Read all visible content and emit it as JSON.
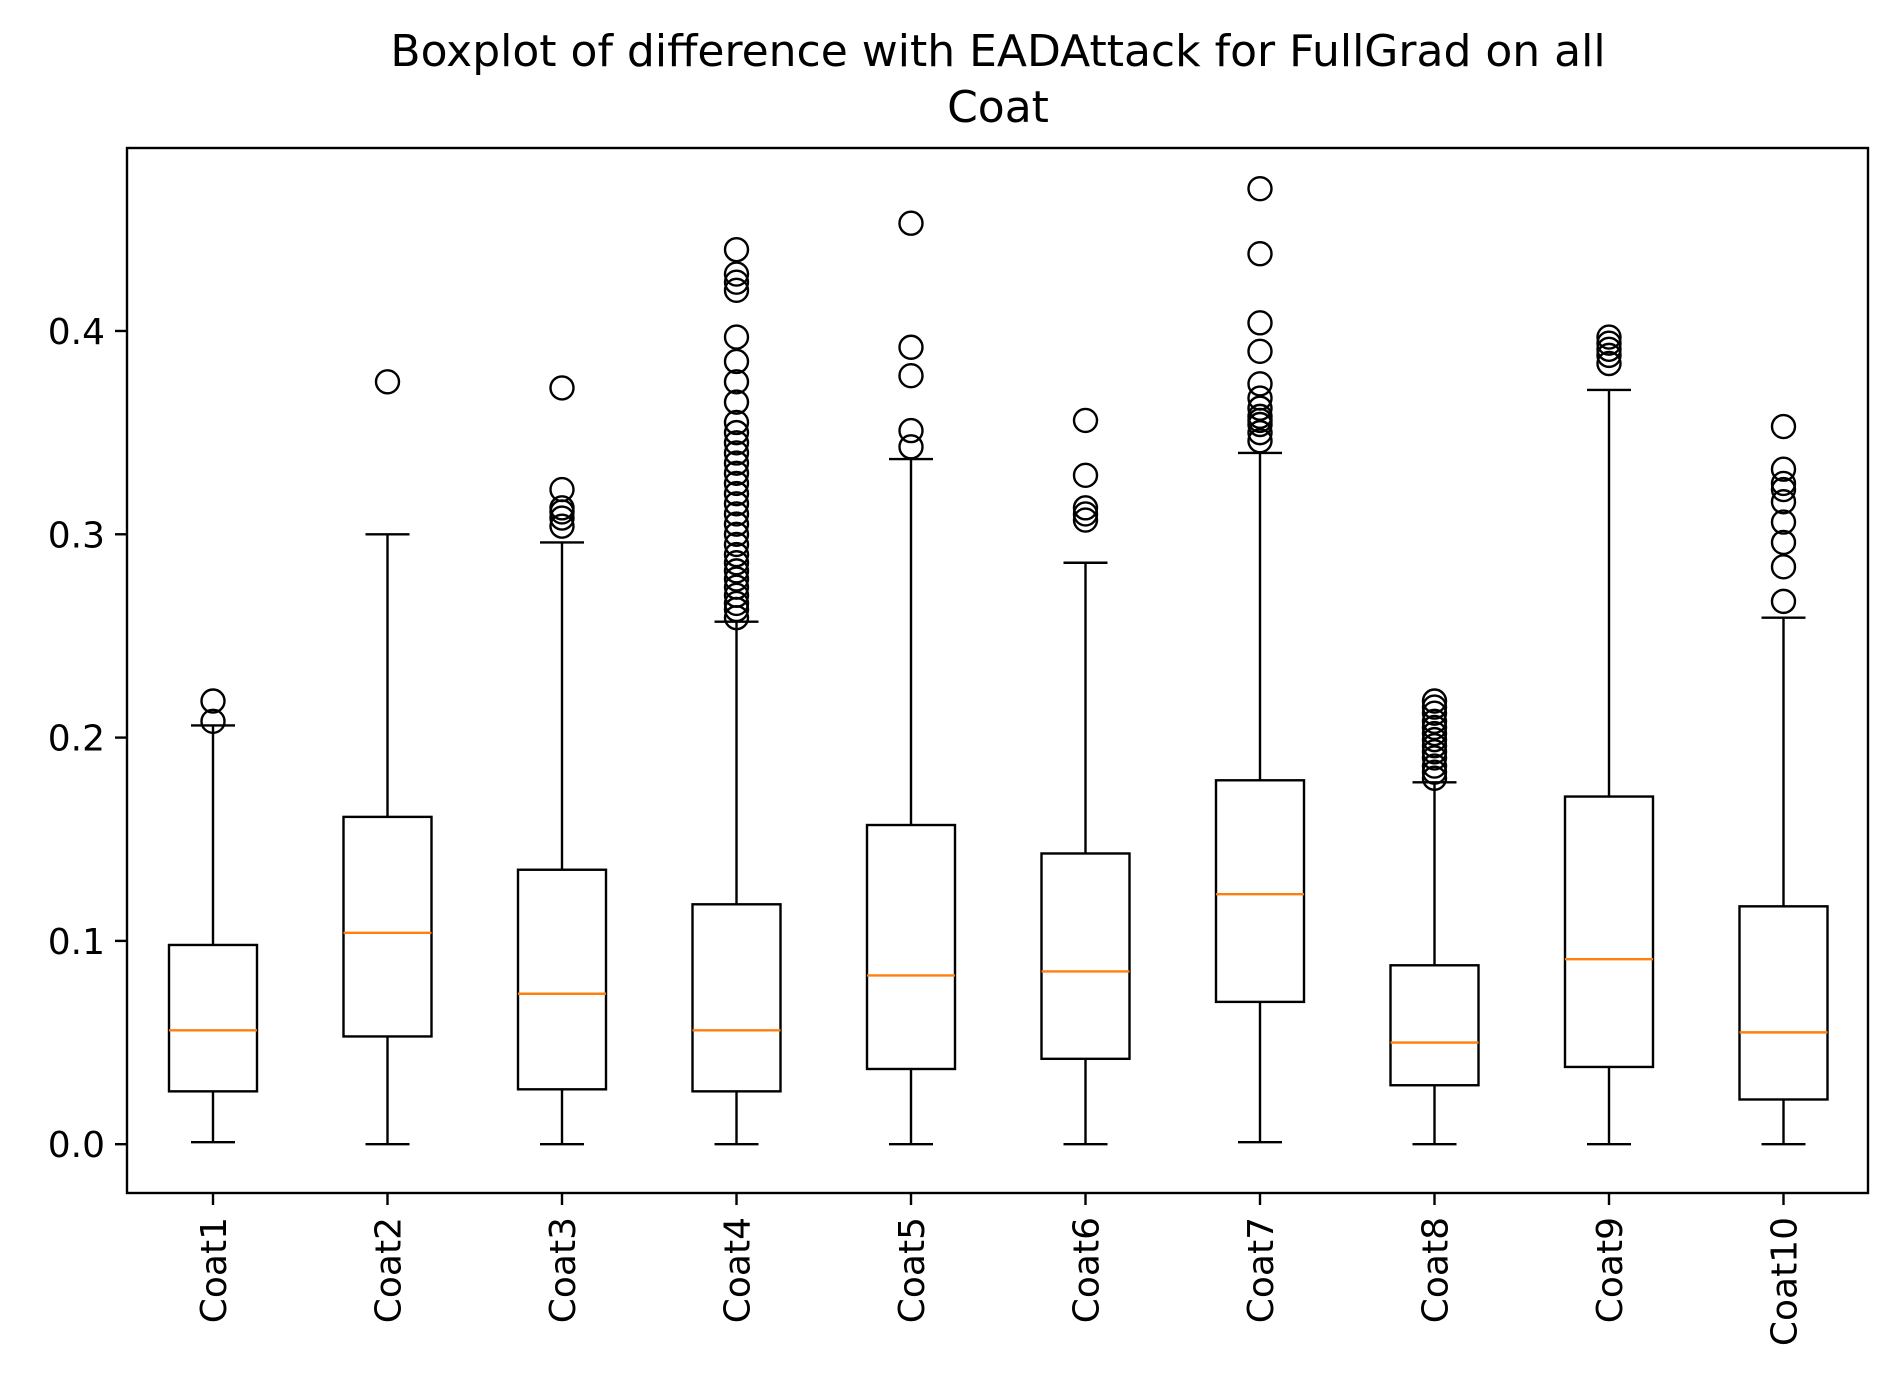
{
  "chart_data": {
    "type": "boxplot",
    "title_lines": [
      "Boxplot of difference with EADAttack for FullGrad on all",
      "Coat"
    ],
    "xlabel": "",
    "ylabel": "",
    "ylim": [
      -0.024,
      0.49
    ],
    "yticks": [
      0.0,
      0.1,
      0.2,
      0.3,
      0.4
    ],
    "ytick_labels": [
      "0.0",
      "0.1",
      "0.2",
      "0.3",
      "0.4"
    ],
    "grid": false,
    "box_color": "#000000",
    "median_color": "#ff7f0e",
    "categories": [
      "Coat1",
      "Coat2",
      "Coat3",
      "Coat4",
      "Coat5",
      "Coat6",
      "Coat7",
      "Coat8",
      "Coat9",
      "Coat10"
    ],
    "boxes": [
      {
        "label": "Coat1",
        "whislo": 0.001,
        "q1": 0.026,
        "med": 0.056,
        "q3": 0.098,
        "whishi": 0.206,
        "fliers": [
          0.208,
          0.218
        ]
      },
      {
        "label": "Coat2",
        "whislo": 0.0,
        "q1": 0.053,
        "med": 0.104,
        "q3": 0.161,
        "whishi": 0.3,
        "fliers": [
          0.375
        ]
      },
      {
        "label": "Coat3",
        "whislo": 0.0,
        "q1": 0.027,
        "med": 0.074,
        "q3": 0.135,
        "whishi": 0.296,
        "fliers": [
          0.304,
          0.308,
          0.311,
          0.313,
          0.322,
          0.372
        ]
      },
      {
        "label": "Coat4",
        "whislo": 0.0,
        "q1": 0.026,
        "med": 0.056,
        "q3": 0.118,
        "whishi": 0.257,
        "fliers": [
          0.259,
          0.263,
          0.266,
          0.27,
          0.274,
          0.278,
          0.282,
          0.286,
          0.29,
          0.295,
          0.3,
          0.305,
          0.31,
          0.315,
          0.32,
          0.325,
          0.33,
          0.335,
          0.34,
          0.345,
          0.35,
          0.355,
          0.365,
          0.375,
          0.385,
          0.397,
          0.42,
          0.424,
          0.428,
          0.44
        ]
      },
      {
        "label": "Coat5",
        "whislo": 0.0,
        "q1": 0.037,
        "med": 0.083,
        "q3": 0.157,
        "whishi": 0.337,
        "fliers": [
          0.343,
          0.351,
          0.378,
          0.392,
          0.453
        ]
      },
      {
        "label": "Coat6",
        "whislo": 0.0,
        "q1": 0.042,
        "med": 0.085,
        "q3": 0.143,
        "whishi": 0.286,
        "fliers": [
          0.307,
          0.31,
          0.313,
          0.329,
          0.356
        ]
      },
      {
        "label": "Coat7",
        "whislo": 0.001,
        "q1": 0.07,
        "med": 0.123,
        "q3": 0.179,
        "whishi": 0.34,
        "fliers": [
          0.346,
          0.35,
          0.354,
          0.356,
          0.358,
          0.362,
          0.367,
          0.374,
          0.39,
          0.404,
          0.438,
          0.47
        ]
      },
      {
        "label": "Coat8",
        "whislo": 0.0,
        "q1": 0.029,
        "med": 0.05,
        "q3": 0.088,
        "whishi": 0.178,
        "fliers": [
          0.18,
          0.183,
          0.186,
          0.19,
          0.193,
          0.196,
          0.199,
          0.202,
          0.205,
          0.208,
          0.212,
          0.215,
          0.218
        ]
      },
      {
        "label": "Coat9",
        "whislo": 0.0,
        "q1": 0.038,
        "med": 0.091,
        "q3": 0.171,
        "whishi": 0.371,
        "fliers": [
          0.384,
          0.388,
          0.391,
          0.394,
          0.397
        ]
      },
      {
        "label": "Coat10",
        "whislo": 0.0,
        "q1": 0.022,
        "med": 0.055,
        "q3": 0.117,
        "whishi": 0.259,
        "fliers": [
          0.267,
          0.284,
          0.296,
          0.306,
          0.316,
          0.322,
          0.325,
          0.332,
          0.353
        ]
      }
    ]
  }
}
